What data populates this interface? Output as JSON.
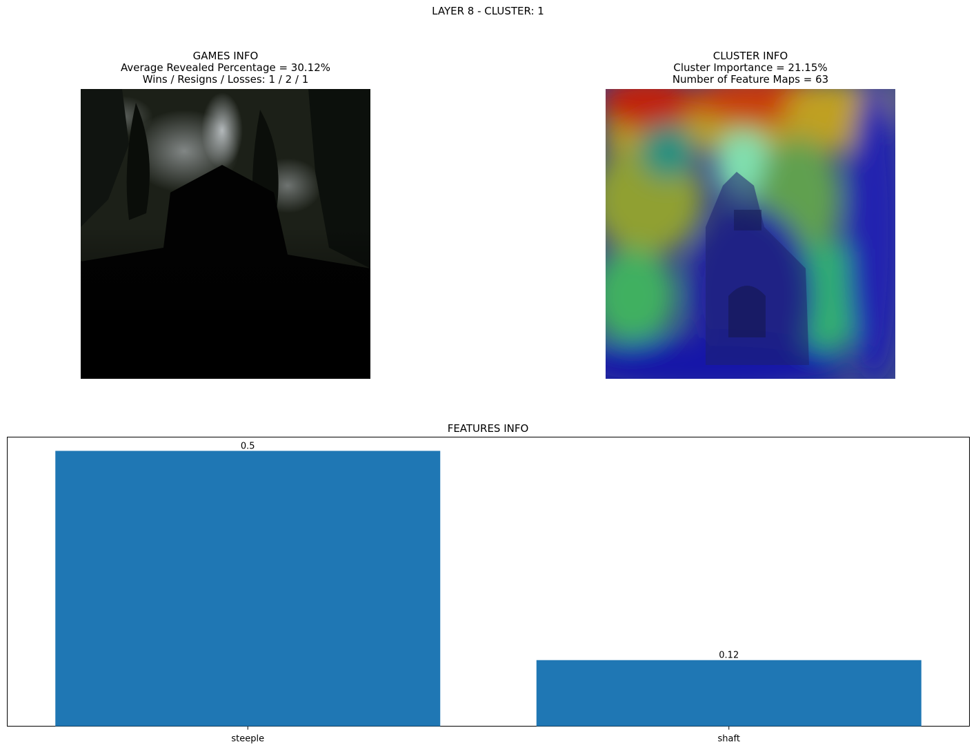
{
  "suptitle": "LAYER 8 - CLUSTER: 1",
  "games_info": {
    "title": "GAMES INFO",
    "line1": "Average Revealed Percentage = 30.12%",
    "line2": "Wins / Resigns / Losses: 1 / 2 / 1"
  },
  "cluster_info": {
    "title": "CLUSTER INFO",
    "line1": "Cluster Importance = 21.15%",
    "line2": "Number of Feature Maps = 63"
  },
  "chart_data": {
    "type": "bar",
    "title": "FEATURES INFO",
    "categories": [
      "steeple",
      "shaft"
    ],
    "values": [
      0.5,
      0.12
    ],
    "value_labels": [
      "0.5",
      "0.12"
    ],
    "ylim": [
      0,
      0.525
    ],
    "bar_color": "#1f77b4",
    "grid": false,
    "yticks_visible": false
  }
}
